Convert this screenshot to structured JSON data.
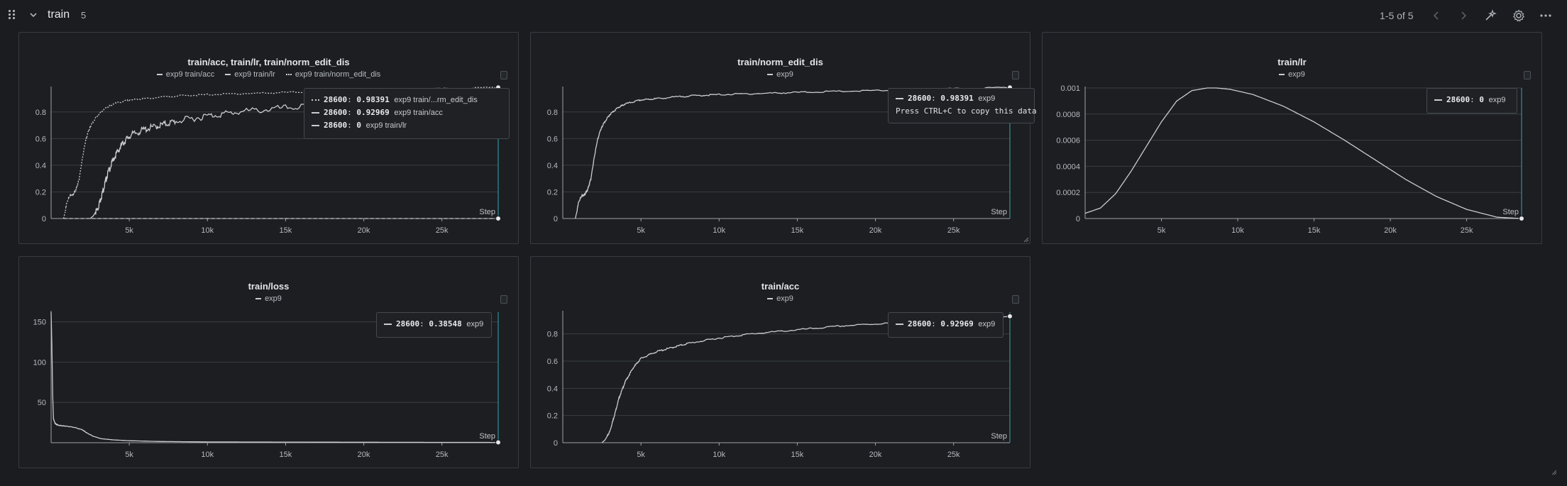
{
  "header": {
    "section_title": "train",
    "section_count": "5",
    "pagination": "1-5 of 5"
  },
  "icons": {
    "drag": "drag-handle-icon",
    "collapse": "chevron-down-icon",
    "prev": "chevron-left-icon",
    "next": "chevron-right-icon",
    "magic": "sparkle-wand-icon",
    "settings": "gear-icon",
    "more": "more-horizontal-icon"
  },
  "colors": {
    "background": "#1a1c1f",
    "panel": "#1c1e21",
    "line": "#c9ccd0",
    "grid": "#3a3d41",
    "cursor": "#2f8f9a"
  },
  "panels": [
    {
      "title": "train/acc, train/lr, train/norm_edit_dis",
      "legend": [
        "exp9 train/acc",
        "exp9 train/lr",
        "exp9 train/norm_edit_dis"
      ],
      "tooltip": [
        {
          "step": "28600",
          "value": "0.98391",
          "name": "exp9 train/...rm_edit_dis"
        },
        {
          "step": "28600",
          "value": "0.92969",
          "name": "exp9 train/acc"
        },
        {
          "step": "28600",
          "value": "0",
          "name": "exp9 train/lr"
        }
      ]
    },
    {
      "title": "train/norm_edit_dis",
      "legend": [
        "exp9"
      ],
      "tooltip": [
        {
          "step": "28600",
          "value": "0.98391",
          "name": "exp9"
        }
      ],
      "tooltip_hint": "Press CTRL+C to copy this data"
    },
    {
      "title": "train/lr",
      "legend": [
        "exp9"
      ],
      "tooltip": [
        {
          "step": "28600",
          "value": "0",
          "name": "exp9"
        }
      ]
    },
    {
      "title": "train/loss",
      "legend": [
        "exp9"
      ],
      "tooltip": [
        {
          "step": "28600",
          "value": "0.38548",
          "name": "exp9"
        }
      ]
    },
    {
      "title": "train/acc",
      "legend": [
        "exp9"
      ],
      "tooltip": [
        {
          "step": "28600",
          "value": "0.92969",
          "name": "exp9"
        }
      ]
    }
  ],
  "chart_data": [
    {
      "type": "line",
      "title": "train/acc, train/lr, train/norm_edit_dis",
      "xlabel": "Step",
      "xlim": [
        0,
        28600
      ],
      "ylim": [
        0,
        0.98
      ],
      "x_ticks": [
        "5k",
        "10k",
        "15k",
        "20k",
        "25k"
      ],
      "x_tick_values": [
        5000,
        10000,
        15000,
        20000,
        25000
      ],
      "y_ticks": [
        "0",
        "0.2",
        "0.4",
        "0.6",
        "0.8"
      ],
      "y_tick_values": [
        0,
        0.2,
        0.4,
        0.6,
        0.8
      ],
      "grid": true,
      "series": [
        {
          "name": "exp9 train/norm_edit_dis",
          "x": [
            800,
            900,
            1000,
            1200,
            1400,
            1600,
            1800,
            2000,
            2200,
            2400,
            2600,
            3000,
            3500,
            4000,
            5000,
            6000,
            8000,
            10000,
            13000,
            16000,
            20000,
            24000,
            28600
          ],
          "y": [
            0,
            0.05,
            0.12,
            0.17,
            0.18,
            0.22,
            0.3,
            0.45,
            0.58,
            0.66,
            0.71,
            0.78,
            0.83,
            0.86,
            0.89,
            0.9,
            0.92,
            0.93,
            0.94,
            0.95,
            0.96,
            0.97,
            0.98391
          ]
        },
        {
          "name": "exp9 train/acc",
          "x": [
            2500,
            2700,
            3000,
            3300,
            3600,
            4000,
            4500,
            5000,
            6000,
            7000,
            8000,
            10000,
            12000,
            15000,
            18000,
            21000,
            24000,
            26000,
            28600
          ],
          "y": [
            0,
            0.02,
            0.08,
            0.2,
            0.33,
            0.45,
            0.55,
            0.62,
            0.67,
            0.7,
            0.73,
            0.77,
            0.8,
            0.83,
            0.86,
            0.88,
            0.9,
            0.91,
            0.92969
          ]
        },
        {
          "name": "exp9 train/lr",
          "x": [
            800,
            28600
          ],
          "y": [
            0,
            0
          ]
        }
      ]
    },
    {
      "type": "line",
      "title": "train/norm_edit_dis",
      "xlabel": "Step",
      "xlim": [
        0,
        28600
      ],
      "ylim": [
        0,
        0.98
      ],
      "x_ticks": [
        "5k",
        "10k",
        "15k",
        "20k",
        "25k"
      ],
      "x_tick_values": [
        5000,
        10000,
        15000,
        20000,
        25000
      ],
      "y_ticks": [
        "0",
        "0.2",
        "0.4",
        "0.6",
        "0.8"
      ],
      "y_tick_values": [
        0,
        0.2,
        0.4,
        0.6,
        0.8
      ],
      "grid": true,
      "series": [
        {
          "name": "exp9",
          "x": [
            800,
            900,
            1000,
            1200,
            1400,
            1600,
            1800,
            2000,
            2200,
            2400,
            2600,
            3000,
            3500,
            4000,
            5000,
            6000,
            8000,
            10000,
            13000,
            16000,
            20000,
            24000,
            28600
          ],
          "y": [
            0,
            0.05,
            0.12,
            0.17,
            0.18,
            0.22,
            0.3,
            0.45,
            0.58,
            0.66,
            0.71,
            0.78,
            0.83,
            0.86,
            0.89,
            0.9,
            0.92,
            0.93,
            0.94,
            0.95,
            0.96,
            0.97,
            0.98391
          ]
        }
      ]
    },
    {
      "type": "line",
      "title": "train/lr",
      "xlabel": "Step",
      "xlim": [
        0,
        28600
      ],
      "ylim": [
        0,
        0.001
      ],
      "x_ticks": [
        "5k",
        "10k",
        "15k",
        "20k",
        "25k"
      ],
      "x_tick_values": [
        5000,
        10000,
        15000,
        20000,
        25000
      ],
      "y_ticks": [
        "0",
        "0.0002",
        "0.0004",
        "0.0006",
        "0.0008",
        "0.001"
      ],
      "y_tick_values": [
        0,
        0.0002,
        0.0004,
        0.0006,
        0.0008,
        0.001
      ],
      "grid": true,
      "series": [
        {
          "name": "exp9",
          "x": [
            0,
            1000,
            2000,
            3000,
            4000,
            5000,
            6000,
            7000,
            8000,
            8600,
            9500,
            11000,
            13000,
            15000,
            17000,
            19000,
            21000,
            23000,
            25000,
            27000,
            28600
          ],
          "y": [
            4e-05,
            8e-05,
            0.00019,
            0.00036,
            0.00055,
            0.00074,
            0.0009,
            0.00098,
            0.001,
            0.001,
            0.00099,
            0.00095,
            0.00086,
            0.00074,
            0.0006,
            0.00045,
            0.0003,
            0.00017,
            7e-05,
            1e-05,
            0
          ]
        }
      ]
    },
    {
      "type": "line",
      "title": "train/loss",
      "xlabel": "Step",
      "xlim": [
        0,
        28600
      ],
      "ylim": [
        0,
        162
      ],
      "x_ticks": [
        "5k",
        "10k",
        "15k",
        "20k",
        "25k"
      ],
      "x_tick_values": [
        5000,
        10000,
        15000,
        20000,
        25000
      ],
      "y_ticks": [
        "50",
        "100",
        "150"
      ],
      "y_tick_values": [
        50,
        100,
        150
      ],
      "grid": true,
      "series": [
        {
          "name": "exp9",
          "x": [
            0,
            50,
            100,
            150,
            250,
            400,
            700,
            1000,
            1500,
            2000,
            2300,
            2700,
            3200,
            4000,
            5000,
            7000,
            10000,
            15000,
            20000,
            25000,
            28600
          ],
          "y": [
            162,
            120,
            60,
            30,
            24,
            22,
            21,
            20.5,
            19,
            16,
            12,
            8,
            5,
            3.5,
            2.5,
            1.5,
            1,
            0.8,
            0.6,
            0.45,
            0.38548
          ]
        }
      ]
    },
    {
      "type": "line",
      "title": "train/acc",
      "xlabel": "Step",
      "xlim": [
        0,
        28600
      ],
      "ylim": [
        0,
        0.96
      ],
      "x_ticks": [
        "5k",
        "10k",
        "15k",
        "20k",
        "25k"
      ],
      "x_tick_values": [
        5000,
        10000,
        15000,
        20000,
        25000
      ],
      "y_ticks": [
        "0",
        "0.2",
        "0.4",
        "0.6",
        "0.8"
      ],
      "y_tick_values": [
        0,
        0.2,
        0.4,
        0.6,
        0.8
      ],
      "grid": true,
      "series": [
        {
          "name": "exp9",
          "x": [
            2500,
            2700,
            3000,
            3300,
            3600,
            4000,
            4500,
            5000,
            6000,
            7000,
            8000,
            10000,
            12000,
            15000,
            18000,
            21000,
            24000,
            26000,
            28600
          ],
          "y": [
            0,
            0.02,
            0.08,
            0.2,
            0.33,
            0.45,
            0.55,
            0.62,
            0.67,
            0.7,
            0.73,
            0.77,
            0.8,
            0.83,
            0.86,
            0.88,
            0.9,
            0.91,
            0.92969
          ]
        }
      ]
    }
  ]
}
